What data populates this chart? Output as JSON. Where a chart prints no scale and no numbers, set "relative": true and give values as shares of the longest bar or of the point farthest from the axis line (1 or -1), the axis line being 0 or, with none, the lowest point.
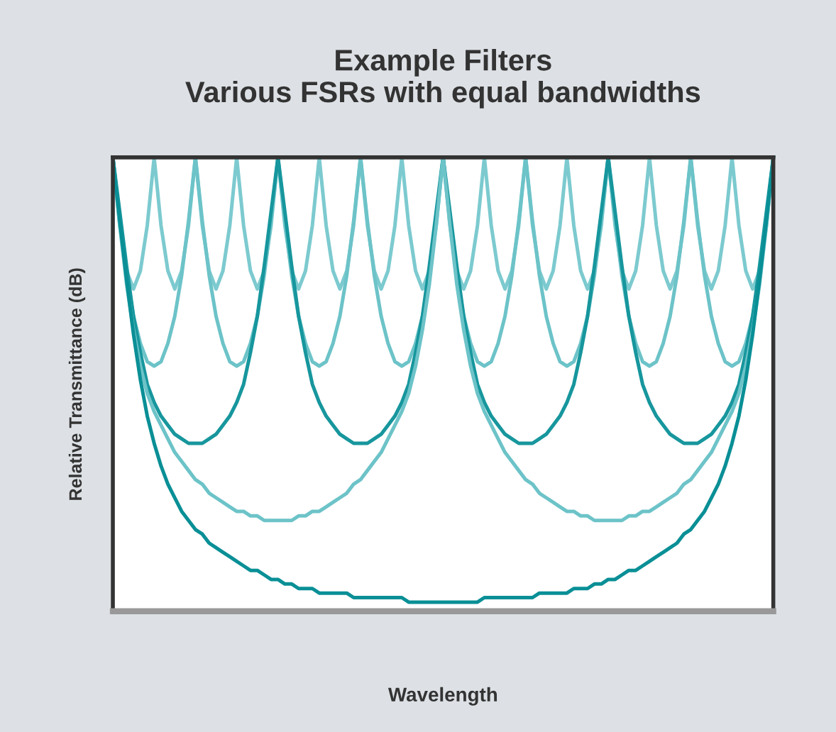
{
  "chart_data": {
    "type": "line",
    "relative": true,
    "title": "Example Filters\nVarious FSRs with equal bandwidths",
    "xlabel": "Wavelength",
    "ylabel": "Relative Transmittance (dB)",
    "grid": false,
    "legend": false,
    "marker": "none",
    "line_style": "solid",
    "categories": [
      null,
      null,
      null,
      null,
      null,
      null,
      null,
      null,
      null,
      null,
      null,
      null,
      null,
      null,
      null,
      null,
      null,
      null,
      null,
      null,
      null,
      null,
      null,
      null,
      null,
      null,
      null,
      null,
      null,
      null,
      null,
      null,
      null,
      null,
      null,
      null,
      null,
      null,
      null,
      null,
      null,
      null,
      null,
      null,
      null,
      null,
      null,
      null,
      null,
      null,
      null,
      null,
      null,
      null,
      null,
      null,
      null,
      null,
      null,
      null,
      null,
      null,
      null,
      null,
      null,
      null,
      null,
      null,
      null,
      null,
      null,
      null,
      null,
      null,
      null,
      null,
      null,
      null,
      null,
      null,
      null,
      null,
      null,
      null,
      null,
      null,
      null,
      null,
      null,
      null,
      null,
      null,
      null,
      null,
      null,
      null,
      null
    ],
    "series": [
      {
        "color": "#7ccacf",
        "values": [
          1,
          0.85,
          0.75,
          0.71,
          0.75,
          0.85,
          1,
          0.85,
          0.75,
          0.71,
          0.75,
          0.85,
          1,
          0.85,
          0.75,
          0.71,
          0.75,
          0.85,
          1,
          0.85,
          0.75,
          0.71,
          0.75,
          0.85,
          1,
          0.85,
          0.75,
          0.71,
          0.75,
          0.85,
          1,
          0.85,
          0.75,
          0.71,
          0.75,
          0.85,
          1,
          0.85,
          0.75,
          0.71,
          0.75,
          0.85,
          1,
          0.85,
          0.75,
          0.71,
          0.75,
          0.85,
          1,
          0.85,
          0.75,
          0.71,
          0.75,
          0.85,
          1,
          0.85,
          0.75,
          0.71,
          0.75,
          0.85,
          1,
          0.85,
          0.75,
          0.71,
          0.75,
          0.85,
          1,
          0.85,
          0.75,
          0.71,
          0.75,
          0.85,
          1,
          0.85,
          0.75,
          0.71,
          0.75,
          0.85,
          1,
          0.85,
          0.75,
          0.71,
          0.75,
          0.85,
          1,
          0.85,
          0.75,
          0.71,
          0.75,
          0.85,
          1,
          0.85,
          0.75,
          0.71,
          0.75,
          0.85,
          1
        ]
      },
      {
        "color": "#6cc3c8",
        "values": [
          1,
          0.86,
          0.74,
          0.65,
          0.59,
          0.55,
          0.54,
          0.55,
          0.59,
          0.65,
          0.74,
          0.86,
          1,
          0.86,
          0.74,
          0.65,
          0.59,
          0.55,
          0.54,
          0.55,
          0.59,
          0.65,
          0.74,
          0.86,
          1,
          0.86,
          0.74,
          0.65,
          0.59,
          0.55,
          0.54,
          0.55,
          0.59,
          0.65,
          0.74,
          0.86,
          1,
          0.86,
          0.74,
          0.65,
          0.59,
          0.55,
          0.54,
          0.55,
          0.59,
          0.65,
          0.74,
          0.86,
          1,
          0.86,
          0.74,
          0.65,
          0.59,
          0.55,
          0.54,
          0.55,
          0.59,
          0.65,
          0.74,
          0.86,
          1,
          0.86,
          0.74,
          0.65,
          0.59,
          0.55,
          0.54,
          0.55,
          0.59,
          0.65,
          0.74,
          0.86,
          1,
          0.86,
          0.74,
          0.65,
          0.59,
          0.55,
          0.54,
          0.55,
          0.59,
          0.65,
          0.74,
          0.86,
          1,
          0.86,
          0.74,
          0.65,
          0.59,
          0.55,
          0.54,
          0.55,
          0.59,
          0.65,
          0.74,
          0.86,
          1
        ]
      },
      {
        "color": "#17969d",
        "values": [
          1,
          0.88,
          0.76,
          0.65,
          0.57,
          0.5,
          0.46,
          0.43,
          0.41,
          0.39,
          0.38,
          0.37,
          0.37,
          0.37,
          0.38,
          0.39,
          0.41,
          0.43,
          0.46,
          0.5,
          0.57,
          0.65,
          0.76,
          0.88,
          1,
          0.88,
          0.76,
          0.65,
          0.57,
          0.5,
          0.46,
          0.43,
          0.41,
          0.39,
          0.38,
          0.37,
          0.37,
          0.37,
          0.38,
          0.39,
          0.41,
          0.43,
          0.46,
          0.5,
          0.57,
          0.65,
          0.76,
          0.88,
          1,
          0.88,
          0.76,
          0.65,
          0.57,
          0.5,
          0.46,
          0.43,
          0.41,
          0.39,
          0.38,
          0.37,
          0.37,
          0.37,
          0.38,
          0.39,
          0.41,
          0.43,
          0.46,
          0.5,
          0.57,
          0.65,
          0.76,
          0.88,
          1,
          0.88,
          0.76,
          0.65,
          0.57,
          0.5,
          0.46,
          0.43,
          0.41,
          0.39,
          0.38,
          0.37,
          0.37,
          0.37,
          0.38,
          0.39,
          0.41,
          0.43,
          0.46,
          0.5,
          0.57,
          0.65,
          0.76,
          0.88,
          1
        ]
      },
      {
        "color": "#6cc3c8",
        "values": [
          1,
          0.85,
          0.72,
          0.62,
          0.54,
          0.48,
          0.44,
          0.41,
          0.38,
          0.35,
          0.33,
          0.31,
          0.29,
          0.28,
          0.26,
          0.25,
          0.24,
          0.23,
          0.22,
          0.22,
          0.21,
          0.21,
          0.2,
          0.2,
          0.2,
          0.2,
          0.2,
          0.21,
          0.21,
          0.22,
          0.22,
          0.23,
          0.24,
          0.25,
          0.26,
          0.28,
          0.29,
          0.31,
          0.33,
          0.35,
          0.38,
          0.41,
          0.44,
          0.48,
          0.54,
          0.62,
          0.72,
          0.85,
          1,
          0.85,
          0.72,
          0.62,
          0.54,
          0.48,
          0.44,
          0.41,
          0.38,
          0.35,
          0.33,
          0.31,
          0.29,
          0.28,
          0.26,
          0.25,
          0.24,
          0.23,
          0.22,
          0.22,
          0.21,
          0.21,
          0.2,
          0.2,
          0.2,
          0.2,
          0.2,
          0.21,
          0.21,
          0.22,
          0.22,
          0.23,
          0.24,
          0.25,
          0.26,
          0.28,
          0.29,
          0.31,
          0.33,
          0.35,
          0.38,
          0.41,
          0.44,
          0.48,
          0.54,
          0.62,
          0.72,
          0.85,
          1
        ]
      },
      {
        "color": "#0a8f96",
        "values": [
          1,
          0.86,
          0.73,
          0.61,
          0.51,
          0.43,
          0.37,
          0.32,
          0.28,
          0.25,
          0.22,
          0.2,
          0.18,
          0.17,
          0.15,
          0.14,
          0.13,
          0.12,
          0.11,
          0.1,
          0.09,
          0.09,
          0.08,
          0.07,
          0.07,
          0.06,
          0.06,
          0.05,
          0.05,
          0.05,
          0.04,
          0.04,
          0.04,
          0.04,
          0.04,
          0.03,
          0.03,
          0.03,
          0.03,
          0.03,
          0.03,
          0.03,
          0.03,
          0.02,
          0.02,
          0.02,
          0.02,
          0.02,
          0.02,
          0.02,
          0.02,
          0.02,
          0.02,
          0.02,
          0.03,
          0.03,
          0.03,
          0.03,
          0.03,
          0.03,
          0.03,
          0.03,
          0.04,
          0.04,
          0.04,
          0.04,
          0.04,
          0.05,
          0.05,
          0.05,
          0.06,
          0.06,
          0.07,
          0.07,
          0.08,
          0.09,
          0.09,
          0.1,
          0.11,
          0.12,
          0.13,
          0.14,
          0.15,
          0.17,
          0.18,
          0.2,
          0.22,
          0.25,
          0.28,
          0.32,
          0.37,
          0.43,
          0.51,
          0.61,
          0.73,
          0.86,
          1
        ]
      }
    ]
  }
}
